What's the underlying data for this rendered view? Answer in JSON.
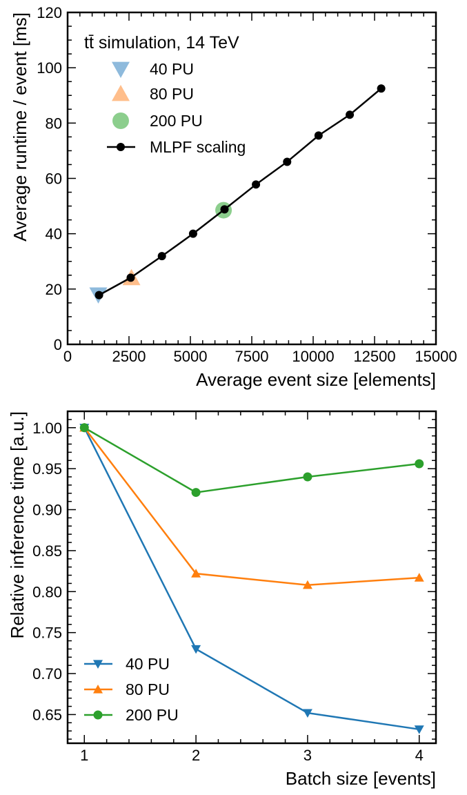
{
  "chart_data": [
    {
      "type": "scatter",
      "annotation": "tt̄ simulation, 14 TeV",
      "xlabel": "Average event size [elements]",
      "ylabel": "Average runtime / event [ms]",
      "xlim": [
        0,
        15000
      ],
      "ylim": [
        0,
        120
      ],
      "xticks": [
        0,
        2500,
        5000,
        7500,
        10000,
        12500,
        15000
      ],
      "yticks": [
        0,
        20,
        40,
        60,
        80,
        100,
        120
      ],
      "legend_position": "top-left",
      "grid": false,
      "series": [
        {
          "name": "40 PU",
          "marker": "triangle-down",
          "color": "#7aaed6",
          "points": [
            [
              1250,
              18
            ]
          ]
        },
        {
          "name": "80 PU",
          "marker": "triangle-up",
          "color": "#ffb377",
          "points": [
            [
              2600,
              24
            ]
          ]
        },
        {
          "name": "200 PU",
          "marker": "circle",
          "color": "#78c679",
          "points": [
            [
              6350,
              48.5
            ]
          ]
        },
        {
          "name": "MLPF scaling",
          "marker": "circle-line",
          "color": "#000000",
          "points": [
            [
              1280,
              17.8
            ],
            [
              2570,
              24.1
            ],
            [
              3840,
              31.9
            ],
            [
              5110,
              40.0
            ],
            [
              6390,
              48.8
            ],
            [
              7670,
              57.8
            ],
            [
              8940,
              66.0
            ],
            [
              10220,
              75.5
            ],
            [
              11490,
              83.0
            ],
            [
              12770,
              92.5
            ]
          ]
        }
      ]
    },
    {
      "type": "line",
      "xlabel": "Batch size [events]",
      "ylabel": "Relative inference time [a.u.]",
      "x": [
        1,
        2,
        3,
        4
      ],
      "xlim": [
        0.85,
        4.15
      ],
      "ylim": [
        0.615,
        1.02
      ],
      "xticks": [
        "1",
        "2",
        "3",
        "4"
      ],
      "yticks": [
        "0.65",
        "0.70",
        "0.75",
        "0.80",
        "0.85",
        "0.90",
        "0.95",
        "1.00"
      ],
      "legend_position": "bottom-left",
      "grid": false,
      "series": [
        {
          "name": "40 PU",
          "marker": "triangle-down",
          "color": "#1f77b4",
          "values": [
            1.0,
            0.73,
            0.652,
            0.632
          ]
        },
        {
          "name": "80 PU",
          "marker": "triangle-up",
          "color": "#ff7f0e",
          "values": [
            1.0,
            0.822,
            0.808,
            0.817
          ]
        },
        {
          "name": "200 PU",
          "marker": "circle",
          "color": "#2ca02c",
          "values": [
            1.0,
            0.921,
            0.94,
            0.956
          ]
        }
      ]
    }
  ]
}
